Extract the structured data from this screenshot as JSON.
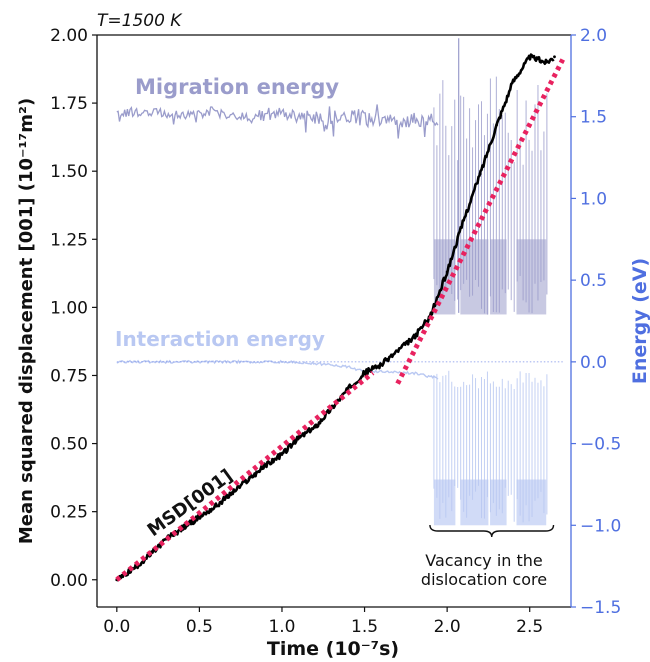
{
  "chart_data": {
    "type": "line",
    "title": "T=1500 K",
    "xlabel": "Time (10⁻⁷s)",
    "ylabel_left": "Mean squared displacement [001] (10⁻¹⁷m²)",
    "ylabel_right": "Energy (eV)",
    "xlim": [
      -0.12,
      2.75
    ],
    "ylim_left": [
      -0.1,
      2.0
    ],
    "ylim_right": [
      -1.5,
      2.0
    ],
    "x_ticks": [
      "0.0",
      "0.5",
      "1.0",
      "1.5",
      "2.0",
      "2.5"
    ],
    "y_left_ticks": [
      "0.00",
      "0.25",
      "0.50",
      "0.75",
      "1.00",
      "1.25",
      "1.50",
      "1.75",
      "2.00"
    ],
    "y_right_ticks": [
      "−1.5",
      "−1.0",
      "−0.5",
      "0.0",
      "0.5",
      "1.0",
      "1.5",
      "2.0"
    ],
    "colors": {
      "msd": "#000000",
      "fit": "#e8225f",
      "migration": "#9a9ccb",
      "interaction": "#b9c8f2",
      "right_axis": "#4f6fe0"
    },
    "series": [
      {
        "name": "MSD[001]",
        "axis": "left",
        "x": [
          0.0,
          0.1,
          0.2,
          0.3,
          0.4,
          0.5,
          0.6,
          0.7,
          0.8,
          0.9,
          1.0,
          1.1,
          1.2,
          1.3,
          1.4,
          1.5,
          1.6,
          1.7,
          1.8,
          1.9,
          2.0,
          2.1,
          2.2,
          2.3,
          2.4,
          2.5,
          2.6,
          2.65
        ],
        "y": [
          0.0,
          0.04,
          0.09,
          0.15,
          0.19,
          0.23,
          0.27,
          0.32,
          0.37,
          0.42,
          0.46,
          0.52,
          0.56,
          0.63,
          0.7,
          0.76,
          0.79,
          0.84,
          0.89,
          0.97,
          1.13,
          1.32,
          1.49,
          1.67,
          1.83,
          1.92,
          1.9,
          1.92
        ]
      },
      {
        "name": "Migration energy",
        "axis": "right",
        "x": [
          0.0,
          0.2,
          0.4,
          0.6,
          0.8,
          1.0,
          1.2,
          1.4,
          1.6,
          1.8,
          1.95
        ],
        "y": [
          1.52,
          1.53,
          1.51,
          1.52,
          1.5,
          1.52,
          1.49,
          1.5,
          1.47,
          1.48,
          1.47
        ]
      },
      {
        "name": "Interaction energy",
        "axis": "right",
        "x": [
          0.0,
          0.2,
          0.4,
          0.6,
          0.8,
          1.0,
          1.2,
          1.4,
          1.5,
          1.6,
          1.8,
          1.95
        ],
        "y": [
          0.0,
          0.0,
          0.0,
          0.0,
          0.0,
          0.0,
          -0.01,
          -0.03,
          -0.06,
          -0.06,
          -0.07,
          -0.1
        ]
      }
    ],
    "fits": [
      {
        "axis": "left",
        "x": [
          0.0,
          1.55
        ],
        "y": [
          0.0,
          0.76
        ]
      },
      {
        "axis": "left",
        "x": [
          1.7,
          2.7
        ],
        "y": [
          0.72,
          1.91
        ]
      }
    ],
    "annotations": {
      "msd_label": "MSD[001]",
      "migration_label": "Migration energy",
      "interaction_label": "Interaction energy",
      "vacancy_line1": "Vacancy in the",
      "vacancy_line2": "dislocation core",
      "vacancy_range": [
        1.92,
        2.62
      ]
    }
  }
}
